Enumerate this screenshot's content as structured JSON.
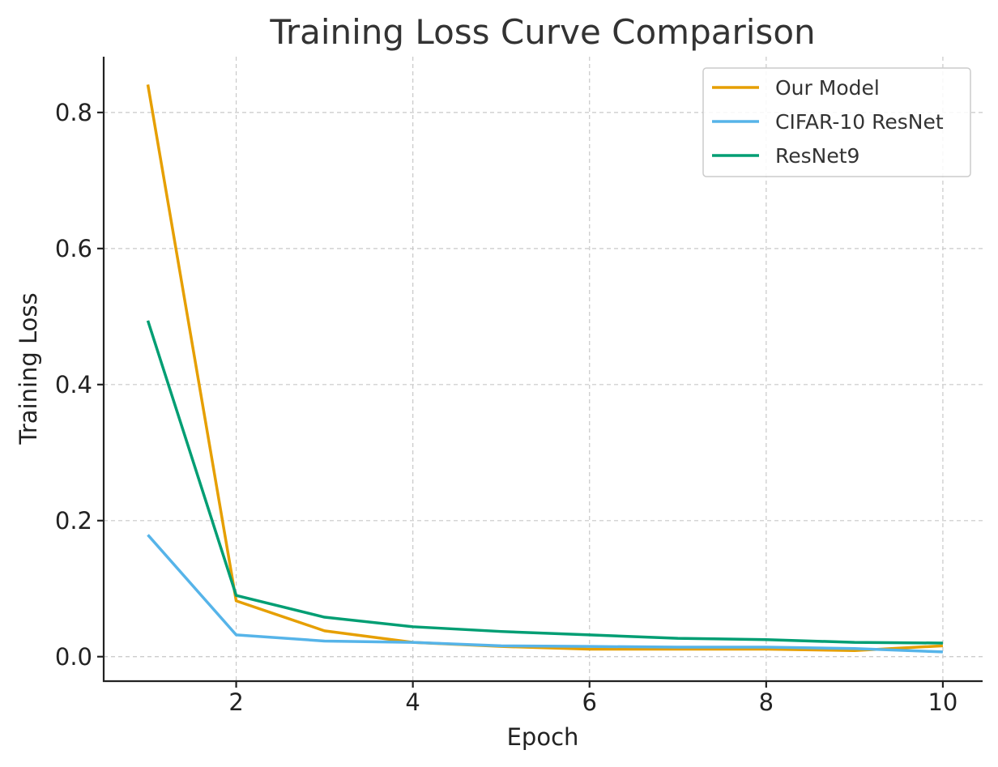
{
  "chart_data": {
    "type": "line",
    "title": "Training Loss Curve Comparison",
    "xlabel": "Epoch",
    "ylabel": "Training Loss",
    "x": [
      1,
      2,
      3,
      4,
      5,
      6,
      7,
      8,
      9,
      10
    ],
    "xlim": [
      0.5,
      10.45
    ],
    "ylim": [
      -0.036,
      0.882
    ],
    "xticks": [
      2,
      4,
      6,
      8,
      10
    ],
    "yticks": [
      0.0,
      0.2,
      0.4,
      0.6,
      0.8
    ],
    "xtick_labels": [
      "2",
      "4",
      "6",
      "8",
      "10"
    ],
    "ytick_labels": [
      "0.0",
      "0.2",
      "0.4",
      "0.6",
      "0.8"
    ],
    "grid": true,
    "legend_position": "top-right",
    "series": [
      {
        "name": "Our Model",
        "color": "#E69F00",
        "values": [
          0.841,
          0.082,
          0.038,
          0.021,
          0.015,
          0.011,
          0.011,
          0.011,
          0.009,
          0.016
        ]
      },
      {
        "name": "CIFAR-10 ResNet",
        "color": "#56B4E9",
        "values": [
          0.179,
          0.032,
          0.023,
          0.021,
          0.016,
          0.015,
          0.014,
          0.014,
          0.012,
          0.007
        ]
      },
      {
        "name": "ResNet9",
        "color": "#009E73",
        "values": [
          0.494,
          0.09,
          0.058,
          0.044,
          0.037,
          0.032,
          0.027,
          0.025,
          0.021,
          0.02
        ]
      }
    ]
  }
}
